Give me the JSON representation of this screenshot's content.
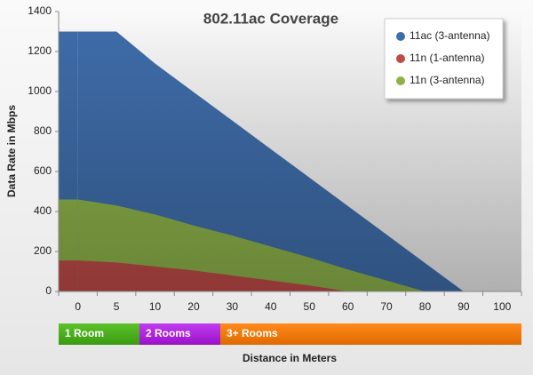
{
  "chart_data": {
    "type": "area",
    "title": "802.11ac Coverage",
    "xlabel": "Distance in Meters",
    "ylabel": "Data Rate in Mbps",
    "categories": [
      "0",
      "5",
      "10",
      "20",
      "30",
      "40",
      "50",
      "60",
      "70",
      "80",
      "90",
      "100"
    ],
    "series": [
      {
        "name": "11ac (3-antenna)",
        "color": "#3f6daa",
        "values": [
          1300,
          1300,
          1140,
          997,
          855,
          712,
          570,
          427,
          285,
          142,
          0,
          0
        ]
      },
      {
        "name": "11n (3-antenna)",
        "color": "#8db24a",
        "values": [
          460,
          430,
          385,
          330,
          280,
          225,
          170,
          110,
          55,
          0,
          0,
          0
        ]
      },
      {
        "name": "11n (1-antenna)",
        "color": "#bf4b48",
        "values": [
          155,
          145,
          125,
          105,
          80,
          55,
          30,
          0,
          0,
          0,
          0,
          0
        ]
      }
    ],
    "legend_order": [
      0,
      2,
      1
    ],
    "ylim": [
      0,
      1400
    ],
    "yticks": [
      0,
      200,
      400,
      600,
      800,
      1000,
      1200,
      1400
    ],
    "zones": [
      "1 Room",
      "2 Rooms",
      "3+ Rooms"
    ]
  }
}
